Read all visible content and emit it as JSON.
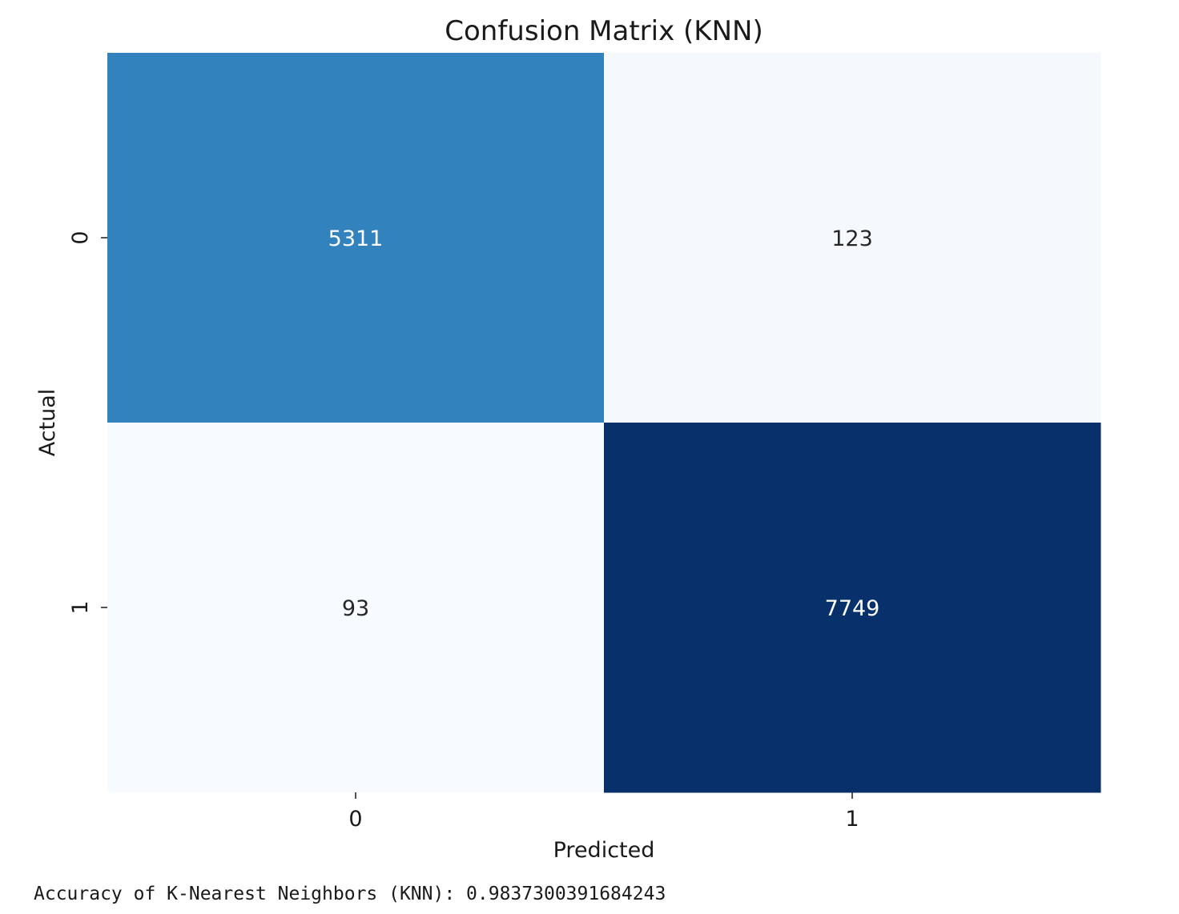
{
  "chart_data": {
    "type": "heatmap",
    "title": "Confusion Matrix (KNN)",
    "xlabel": "Predicted",
    "ylabel": "Actual",
    "x_categories": [
      "0",
      "1"
    ],
    "y_categories": [
      "0",
      "1"
    ],
    "values": [
      [
        5311,
        123
      ],
      [
        93,
        7749
      ]
    ],
    "colormap": "Blues",
    "colorbar": false,
    "cell_colors": [
      [
        "#3282bd",
        "#f5f9fe"
      ],
      [
        "#f7fbff",
        "#08306b"
      ]
    ],
    "annotation_colors": [
      [
        "#ffffff",
        "#262626"
      ],
      [
        "#262626",
        "#ffffff"
      ]
    ]
  },
  "output": {
    "accuracy_text": "Accuracy of K-Nearest Neighbors (KNN): 0.9837300391684243"
  }
}
